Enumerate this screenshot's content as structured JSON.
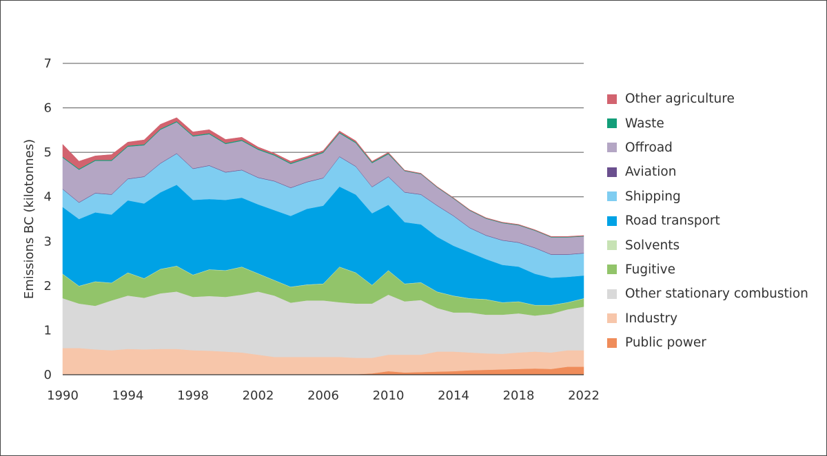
{
  "chart_data": {
    "type": "area",
    "stacked": true,
    "title": "",
    "xlabel": "",
    "ylabel": "Emissions  BC (kilotonnes)",
    "ylim": [
      0,
      7
    ],
    "yticks": [
      "0",
      "1",
      "2",
      "3",
      "4",
      "5",
      "6",
      "7"
    ],
    "xlim": [
      1990,
      2022
    ],
    "xticks": [
      "1990",
      "1994",
      "1998",
      "2002",
      "2006",
      "2010",
      "2014",
      "2018",
      "2022"
    ],
    "grid": "horizontal",
    "legend_position": "right",
    "x": [
      1990,
      1991,
      1992,
      1993,
      1994,
      1995,
      1996,
      1997,
      1998,
      1999,
      2000,
      2001,
      2002,
      2003,
      2004,
      2005,
      2006,
      2007,
      2008,
      2009,
      2010,
      2011,
      2012,
      2013,
      2014,
      2015,
      2016,
      2017,
      2018,
      2019,
      2020,
      2021,
      2022
    ],
    "series": [
      {
        "name": "Public power",
        "color": "#ef8c5a",
        "values": [
          0,
          0,
          0,
          0,
          0,
          0,
          0,
          0,
          0,
          0,
          0,
          0,
          0,
          0,
          0,
          0,
          0,
          0,
          0.01,
          0.03,
          0.08,
          0.05,
          0.06,
          0.07,
          0.08,
          0.1,
          0.11,
          0.12,
          0.13,
          0.14,
          0.13,
          0.18,
          0.18
        ]
      },
      {
        "name": "Industry",
        "color": "#f7c6aa",
        "values": [
          0.6,
          0.6,
          0.57,
          0.55,
          0.58,
          0.57,
          0.58,
          0.58,
          0.55,
          0.54,
          0.52,
          0.5,
          0.45,
          0.4,
          0.4,
          0.4,
          0.4,
          0.4,
          0.37,
          0.35,
          0.37,
          0.4,
          0.39,
          0.45,
          0.44,
          0.4,
          0.37,
          0.35,
          0.37,
          0.38,
          0.37,
          0.37,
          0.37
        ]
      },
      {
        "name": "Other stationary combustion",
        "color": "#d9d9d9",
        "values": [
          1.12,
          1.0,
          0.98,
          1.12,
          1.2,
          1.16,
          1.25,
          1.29,
          1.2,
          1.23,
          1.23,
          1.3,
          1.42,
          1.38,
          1.22,
          1.27,
          1.27,
          1.23,
          1.22,
          1.22,
          1.35,
          1.2,
          1.23,
          0.98,
          0.88,
          0.9,
          0.87,
          0.88,
          0.88,
          0.81,
          0.87,
          0.92,
          0.98
        ]
      },
      {
        "name": "Fugitive",
        "color": "#92c46a",
        "values": [
          0.54,
          0.39,
          0.54,
          0.39,
          0.51,
          0.43,
          0.54,
          0.57,
          0.49,
          0.59,
          0.59,
          0.62,
          0.4,
          0.34,
          0.35,
          0.35,
          0.37,
          0.79,
          0.69,
          0.41,
          0.54,
          0.39,
          0.39,
          0.36,
          0.37,
          0.31,
          0.34,
          0.27,
          0.26,
          0.23,
          0.19,
          0.15,
          0.18
        ]
      },
      {
        "name": "Solvents",
        "color": "#c7e2b4",
        "values": [
          0.01,
          0.01,
          0.01,
          0.01,
          0.01,
          0.01,
          0.01,
          0.01,
          0.01,
          0.01,
          0.01,
          0.01,
          0.01,
          0.01,
          0.01,
          0.01,
          0.01,
          0.01,
          0.01,
          0.01,
          0.01,
          0.01,
          0.01,
          0.01,
          0.01,
          0.01,
          0.01,
          0.01,
          0.01,
          0.01,
          0.01,
          0.01,
          0.01
        ]
      },
      {
        "name": "Road transport",
        "color": "#00a2e5",
        "values": [
          1.5,
          1.5,
          1.55,
          1.53,
          1.62,
          1.68,
          1.72,
          1.82,
          1.68,
          1.58,
          1.58,
          1.55,
          1.55,
          1.57,
          1.59,
          1.7,
          1.75,
          1.8,
          1.75,
          1.61,
          1.47,
          1.38,
          1.3,
          1.23,
          1.12,
          1.03,
          0.9,
          0.84,
          0.78,
          0.7,
          0.61,
          0.57,
          0.51
        ]
      },
      {
        "name": "Shipping",
        "color": "#7fcdf1",
        "values": [
          0.4,
          0.37,
          0.43,
          0.45,
          0.48,
          0.6,
          0.65,
          0.7,
          0.7,
          0.75,
          0.62,
          0.62,
          0.6,
          0.65,
          0.63,
          0.6,
          0.62,
          0.67,
          0.63,
          0.59,
          0.63,
          0.67,
          0.67,
          0.7,
          0.67,
          0.55,
          0.53,
          0.55,
          0.54,
          0.58,
          0.52,
          0.5,
          0.5
        ]
      },
      {
        "name": "Aviation",
        "color": "#6a4f8e",
        "values": [
          0.01,
          0.01,
          0.01,
          0.01,
          0.01,
          0.01,
          0.01,
          0.01,
          0.01,
          0.01,
          0.01,
          0.01,
          0.01,
          0.01,
          0.01,
          0.01,
          0.01,
          0.01,
          0.01,
          0.01,
          0.01,
          0.01,
          0.01,
          0.01,
          0.01,
          0.01,
          0.01,
          0.01,
          0.01,
          0.01,
          0.01,
          0.01,
          0.01
        ]
      },
      {
        "name": "Offroad",
        "color": "#b4a6c4",
        "values": [
          0.7,
          0.73,
          0.72,
          0.75,
          0.72,
          0.7,
          0.75,
          0.7,
          0.72,
          0.7,
          0.63,
          0.65,
          0.62,
          0.57,
          0.53,
          0.52,
          0.56,
          0.52,
          0.52,
          0.53,
          0.5,
          0.47,
          0.45,
          0.4,
          0.38,
          0.38,
          0.37,
          0.38,
          0.38,
          0.38,
          0.38,
          0.38,
          0.37
        ]
      },
      {
        "name": "Waste",
        "color": "#139e79",
        "values": [
          0.02,
          0.02,
          0.02,
          0.02,
          0.02,
          0.02,
          0.02,
          0.02,
          0.02,
          0.02,
          0.02,
          0.02,
          0.02,
          0.02,
          0.02,
          0.02,
          0.02,
          0.02,
          0.02,
          0.02,
          0.02,
          0.01,
          0.01,
          0.01,
          0.01,
          0.01,
          0.01,
          0.01,
          0.01,
          0.01,
          0.01,
          0.01,
          0.01
        ]
      },
      {
        "name": "Other agriculture",
        "color": "#d2636f",
        "values": [
          0.28,
          0.17,
          0.09,
          0.12,
          0.08,
          0.1,
          0.1,
          0.08,
          0.08,
          0.08,
          0.08,
          0.06,
          0.04,
          0.03,
          0.04,
          0.03,
          0.03,
          0.03,
          0.03,
          0.02,
          0.02,
          0.01,
          0.01,
          0.01,
          0.01,
          0.01,
          0.01,
          0.01,
          0.01,
          0.01,
          0.01,
          0.01,
          0.01
        ]
      }
    ]
  }
}
